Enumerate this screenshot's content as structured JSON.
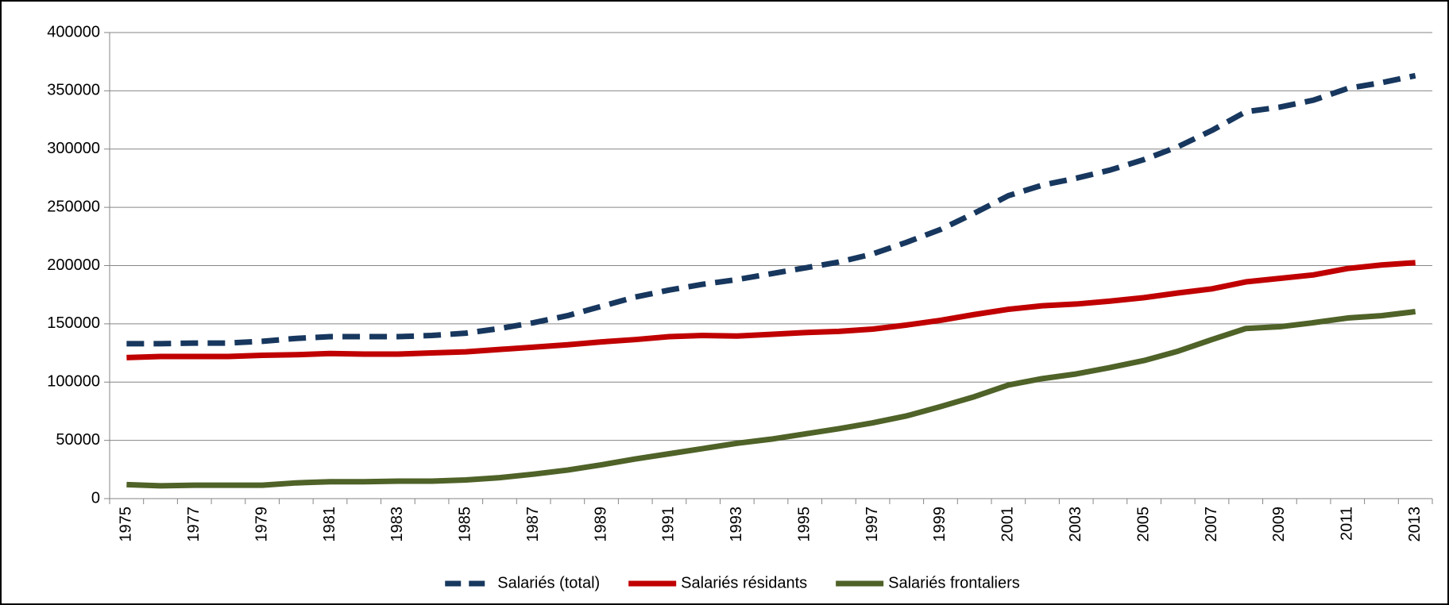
{
  "chart_data": {
    "type": "line",
    "categories": [
      "1975",
      null,
      "1977",
      null,
      "1979",
      null,
      "1981",
      null,
      "1983",
      null,
      "1985",
      null,
      "1987",
      null,
      "1989",
      null,
      "1991",
      null,
      "1993",
      null,
      "1995",
      null,
      "1997",
      null,
      "1999",
      null,
      "2001",
      null,
      "2003",
      null,
      "2005",
      null,
      "2007",
      null,
      "2009",
      null,
      "2011",
      null,
      "2013"
    ],
    "series": [
      {
        "name": "Salariés (total)",
        "color": "#17375e",
        "line_style": "dashed",
        "values": [
          133000,
          133000,
          133500,
          133500,
          135000,
          137500,
          139000,
          139000,
          139000,
          140000,
          142000,
          146000,
          151000,
          157000,
          165000,
          173000,
          179000,
          184000,
          188000,
          193000,
          198000,
          203000,
          210000,
          220000,
          231000,
          245000,
          260000,
          269000,
          275000,
          282000,
          291000,
          302000,
          316000,
          332000,
          336000,
          342000,
          352000,
          357000,
          363000
        ]
      },
      {
        "name": "Salariés résidants",
        "color": "#c00000",
        "line_style": "solid",
        "values": [
          121000,
          122000,
          122000,
          122000,
          123000,
          123500,
          124500,
          124000,
          124000,
          125000,
          126000,
          128000,
          130000,
          132000,
          134500,
          136500,
          139000,
          140000,
          139500,
          141000,
          142500,
          143500,
          145500,
          149000,
          153000,
          158000,
          162500,
          165500,
          167000,
          169500,
          172500,
          176500,
          180000,
          186000,
          189000,
          192000,
          197500,
          200500,
          202500
        ]
      },
      {
        "name": "Salariés frontaliers",
        "color": "#4f6228",
        "line_style": "solid",
        "values": [
          12000,
          11000,
          11500,
          11500,
          11500,
          13500,
          14500,
          14500,
          15000,
          15000,
          16000,
          18000,
          21000,
          24500,
          29000,
          34000,
          38500,
          43000,
          47500,
          51000,
          55500,
          60000,
          65000,
          71000,
          79000,
          87500,
          97500,
          103000,
          107000,
          112500,
          118500,
          126500,
          136500,
          146000,
          147500,
          151000,
          155000,
          157000,
          160500
        ]
      }
    ],
    "ylim": [
      0,
      400000
    ],
    "yticks": [
      0,
      50000,
      100000,
      150000,
      200000,
      250000,
      300000,
      350000,
      400000
    ],
    "grid": true,
    "legend": "bottom"
  }
}
